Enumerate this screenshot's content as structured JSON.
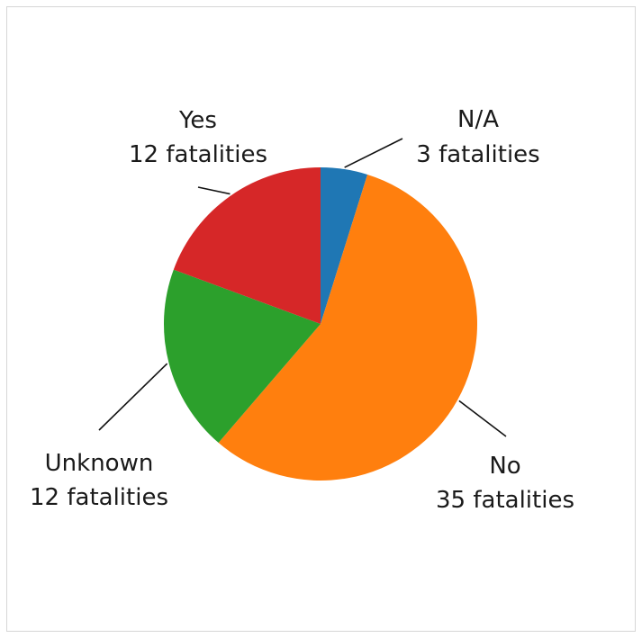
{
  "chart_data": {
    "type": "pie",
    "title": "",
    "slices": [
      {
        "label": "N/A",
        "value": 3,
        "value_text": "3 fatalities",
        "color": "#1f77b4"
      },
      {
        "label": "No",
        "value": 35,
        "value_text": "35 fatalities",
        "color": "#ff7f0e"
      },
      {
        "label": "Unknown",
        "value": 12,
        "value_text": "12 fatalities",
        "color": "#2ca02c"
      },
      {
        "label": "Yes",
        "value": 12,
        "value_text": "12 fatalities",
        "color": "#d62728"
      }
    ],
    "start_angle": "12 o'clock",
    "direction": "clockwise",
    "legend": "none"
  }
}
